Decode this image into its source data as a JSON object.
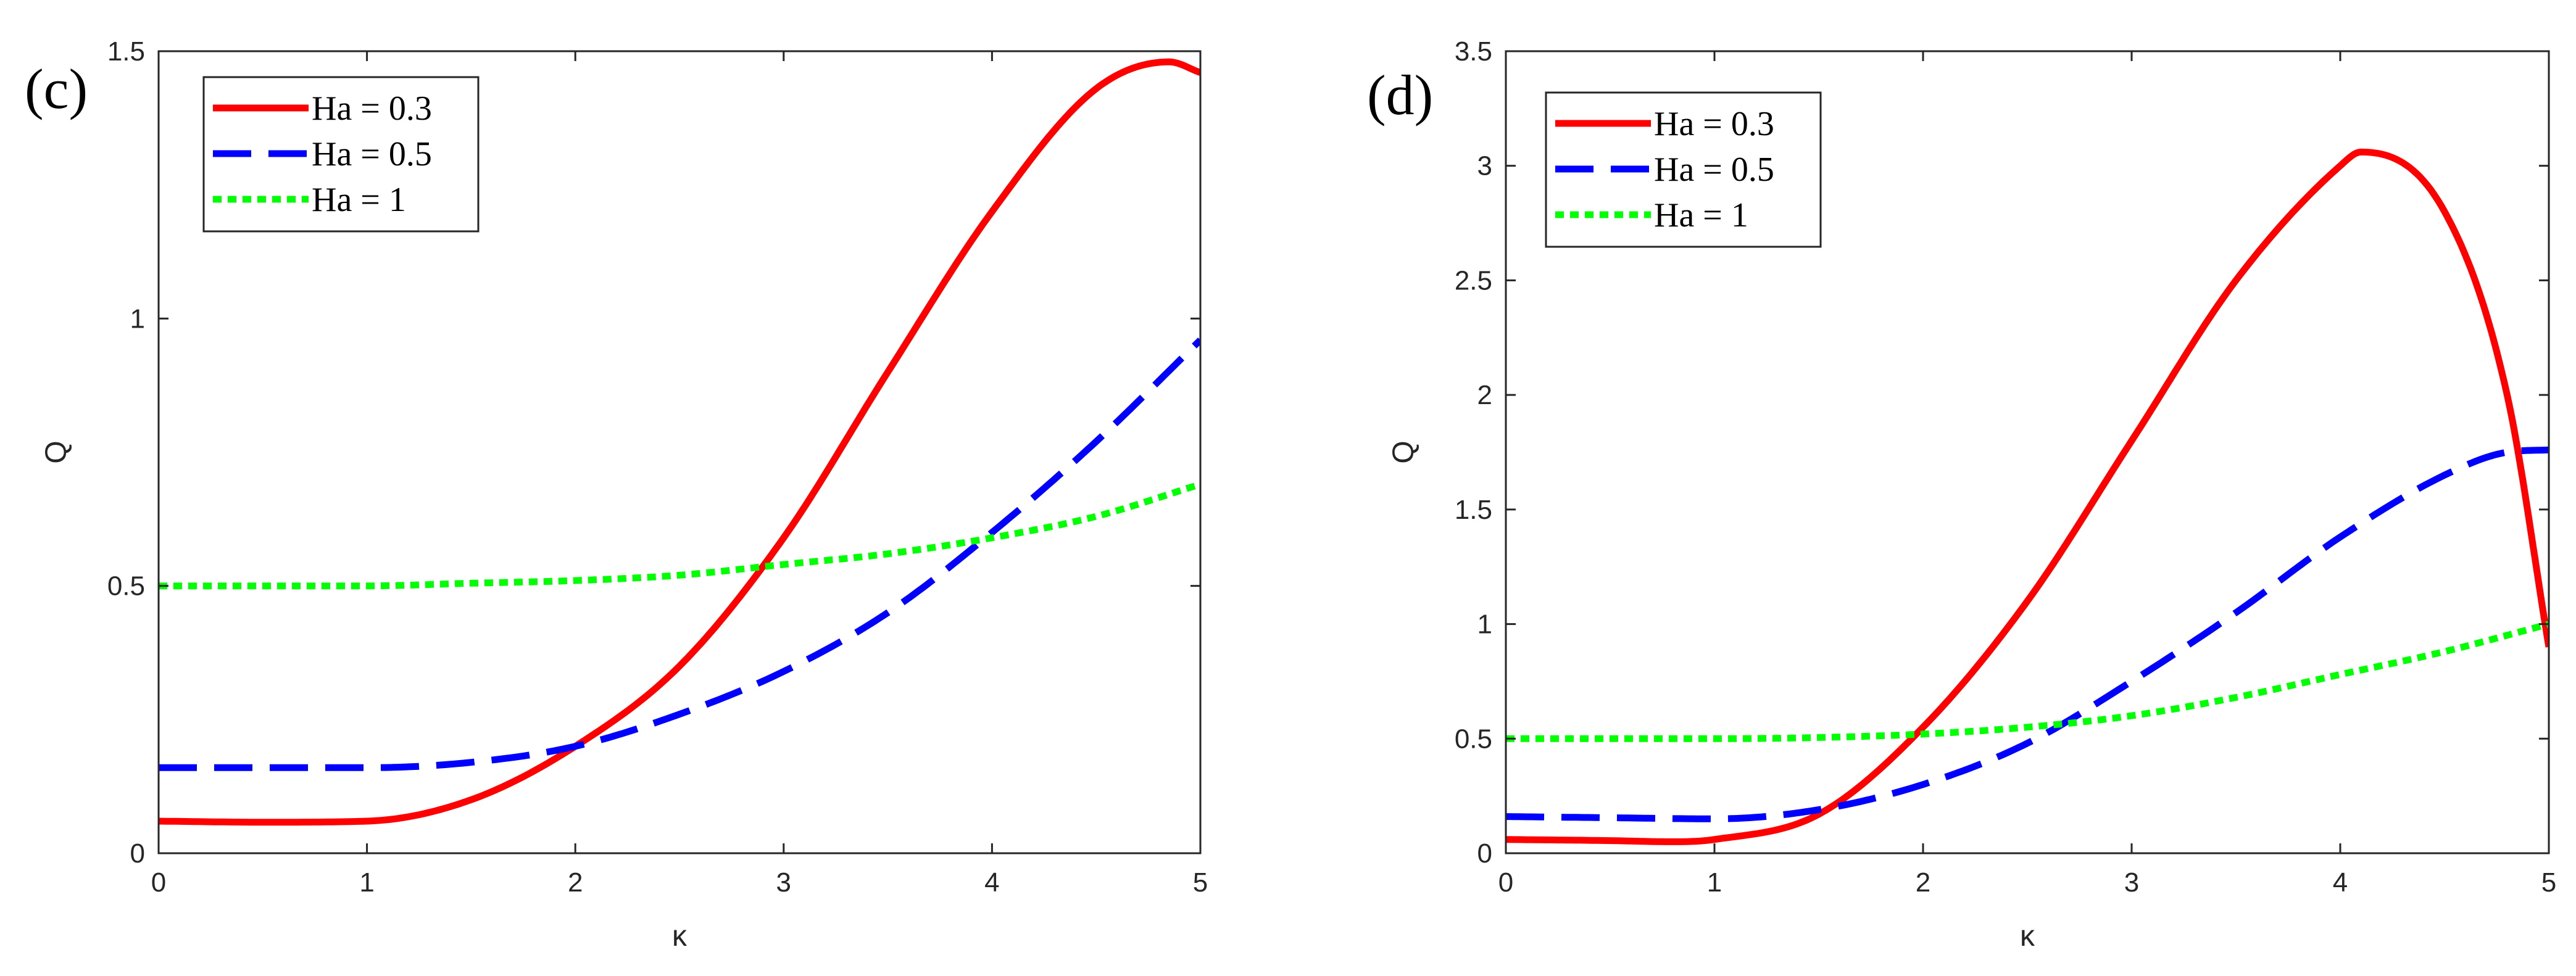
{
  "chart_data": [
    {
      "type": "line",
      "panel_label": "(c)",
      "xlabel": "κ",
      "ylabel": "Q",
      "xlim": [
        0,
        5
      ],
      "ylim": [
        0,
        1.5
      ],
      "xticks": [
        0,
        1,
        2,
        3,
        4,
        5
      ],
      "xtick_labels": [
        "0",
        "1",
        "2",
        "3",
        "4",
        "5"
      ],
      "yticks": [
        0,
        0.5,
        1,
        1.5
      ],
      "ytick_labels": [
        "0",
        "0.5",
        "1",
        "1.5"
      ],
      "legend_position": "top-left",
      "series": [
        {
          "name": "Ha = 0.3",
          "color": "#ff0000",
          "style": "solid",
          "x": [
            0,
            0.5,
            1,
            1.5,
            2,
            2.5,
            3,
            3.5,
            4,
            4.5,
            4.85,
            5
          ],
          "y": [
            0.06,
            0.058,
            0.06,
            0.1,
            0.2,
            0.35,
            0.59,
            0.9,
            1.2,
            1.43,
            1.48,
            1.46
          ]
        },
        {
          "name": "Ha = 0.5",
          "color": "#0000ff",
          "style": "dashed",
          "x": [
            0,
            0.5,
            1,
            1.5,
            2,
            2.5,
            3,
            3.5,
            4,
            4.5,
            5
          ],
          "y": [
            0.16,
            0.16,
            0.16,
            0.17,
            0.2,
            0.26,
            0.34,
            0.45,
            0.6,
            0.77,
            0.96
          ]
        },
        {
          "name": "Ha = 1",
          "color": "#00ff00",
          "style": "dotted",
          "x": [
            0,
            0.5,
            1,
            1.5,
            2,
            2.5,
            3,
            3.5,
            4,
            4.5,
            5
          ],
          "y": [
            0.5,
            0.5,
            0.5,
            0.505,
            0.51,
            0.52,
            0.54,
            0.56,
            0.59,
            0.63,
            0.69
          ]
        }
      ]
    },
    {
      "type": "line",
      "panel_label": "(d)",
      "xlabel": "κ",
      "ylabel": "Q",
      "xlim": [
        0,
        5
      ],
      "ylim": [
        0,
        3.5
      ],
      "xticks": [
        0,
        1,
        2,
        3,
        4,
        5
      ],
      "xtick_labels": [
        "0",
        "1",
        "2",
        "3",
        "4",
        "5"
      ],
      "yticks": [
        0,
        0.5,
        1,
        1.5,
        2,
        2.5,
        3,
        3.5
      ],
      "ytick_labels": [
        "0",
        "0.5",
        "1",
        "1.5",
        "2",
        "2.5",
        "3",
        "3.5"
      ],
      "legend_position": "top-left",
      "series": [
        {
          "name": "Ha = 0.3",
          "color": "#ff0000",
          "style": "solid",
          "x": [
            0,
            0.5,
            0.8,
            1,
            1.5,
            2,
            2.5,
            3,
            3.5,
            4,
            4.1,
            4.5,
            4.8,
            5
          ],
          "y": [
            0.06,
            0.055,
            0.05,
            0.06,
            0.17,
            0.55,
            1.1,
            1.8,
            2.5,
            3.0,
            3.06,
            2.8,
            2.0,
            0.9
          ]
        },
        {
          "name": "Ha = 0.5",
          "color": "#0000ff",
          "style": "dashed",
          "x": [
            0,
            0.5,
            1,
            1.5,
            2,
            2.5,
            3,
            3.5,
            4,
            4.5,
            4.8,
            5
          ],
          "y": [
            0.16,
            0.155,
            0.15,
            0.19,
            0.3,
            0.48,
            0.75,
            1.05,
            1.38,
            1.65,
            1.75,
            1.76
          ]
        },
        {
          "name": "Ha = 1",
          "color": "#00ff00",
          "style": "dotted",
          "x": [
            0,
            0.5,
            1,
            1.5,
            2,
            2.5,
            3,
            3.5,
            4,
            4.5,
            5
          ],
          "y": [
            0.5,
            0.5,
            0.5,
            0.505,
            0.52,
            0.55,
            0.6,
            0.68,
            0.78,
            0.88,
            1.0
          ]
        }
      ]
    }
  ]
}
